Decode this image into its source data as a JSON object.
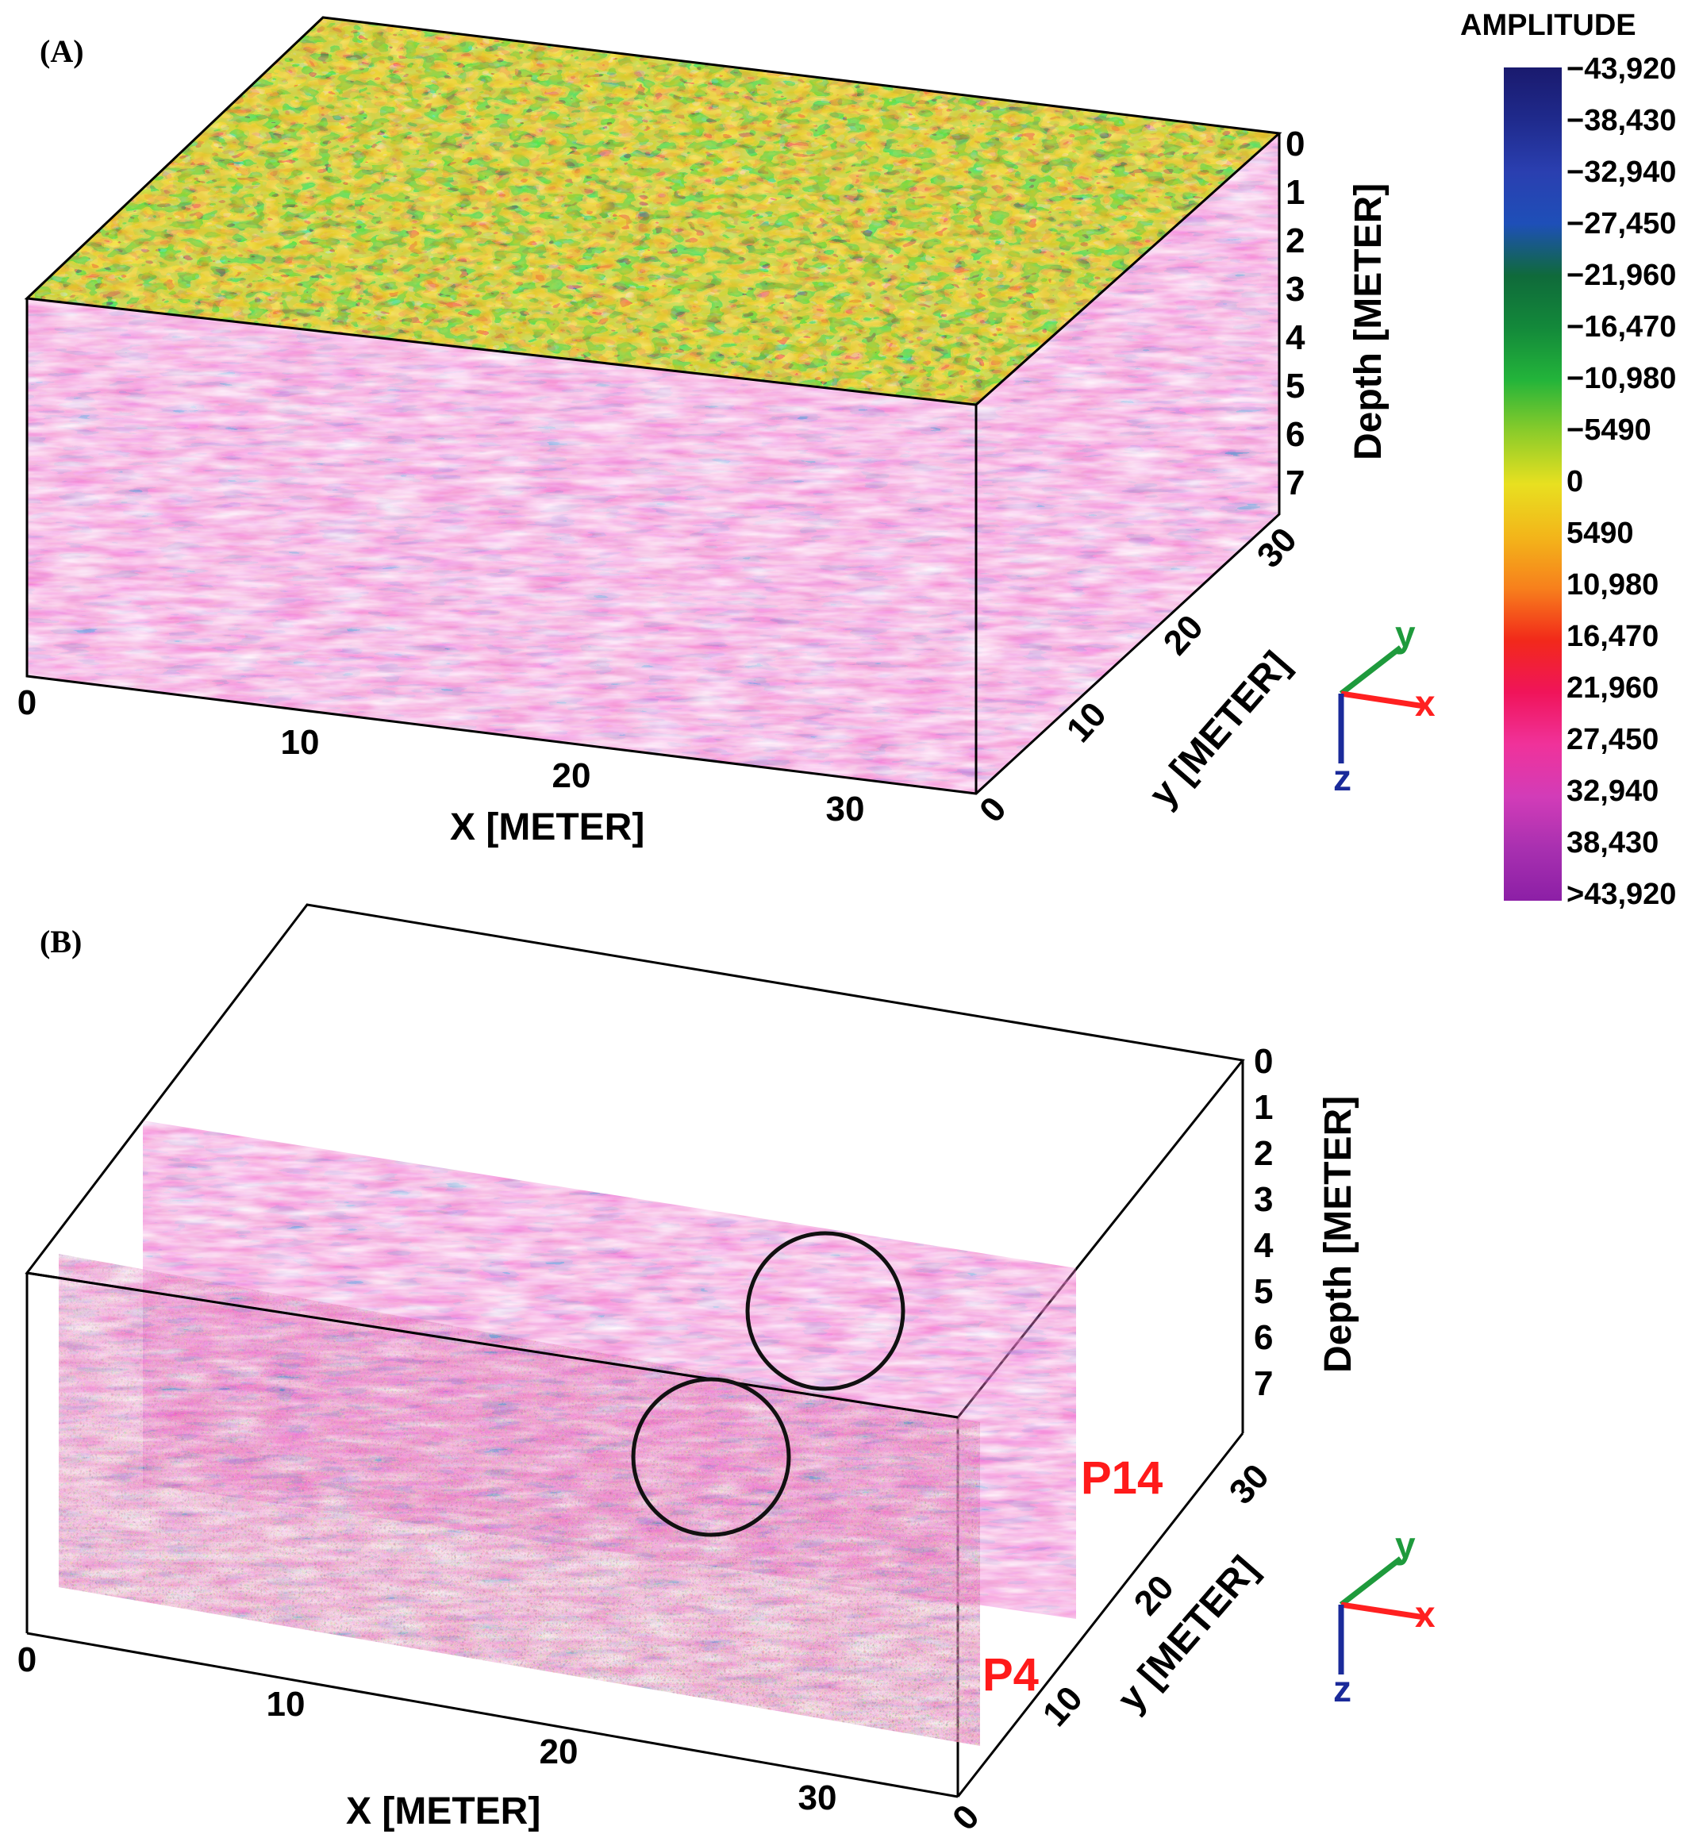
{
  "panel_labels": {
    "a": "(A)",
    "b": "(B)"
  },
  "axes": {
    "x_title": "X [METER]",
    "y_title": "y [METER]",
    "depth_title": "Depth [METER]",
    "x_ticks": [
      "0",
      "10",
      "20",
      "30"
    ],
    "y_ticks": [
      "0",
      "10",
      "20",
      "30"
    ],
    "depth_ticks": [
      "0",
      "1",
      "2",
      "3",
      "4",
      "5",
      "6",
      "7"
    ]
  },
  "colorbar": {
    "title": "AMPLITUDE",
    "labels": [
      "−43,920",
      "−38,430",
      "−32,940",
      "−27,450",
      "−21,960",
      "−16,470",
      "−10,980",
      "−5490",
      "0",
      "5490",
      "10,980",
      "16,470",
      "21,960",
      "27,450",
      "32,940",
      "38,430",
      ">43,920"
    ],
    "stops": [
      "#1a1a6e",
      "#1f2a8c",
      "#2a3fb0",
      "#1e4fb8",
      "#0f6a3a",
      "#13893a",
      "#23b43a",
      "#8ccc2a",
      "#e8e020",
      "#f3b61a",
      "#f7801c",
      "#f2291a",
      "#f0145a",
      "#f0329a",
      "#d23cb8",
      "#a830b0",
      "#8c1fa6"
    ]
  },
  "triad": {
    "x": "x",
    "y": "y",
    "z": "z",
    "colors": {
      "x": "#ff2020",
      "y": "#1e9a3c",
      "z": "#1a2a9a"
    }
  },
  "profiles": {
    "front": "P4",
    "back": "P14"
  },
  "chart_data": [
    {
      "type": "heatmap",
      "panel": "(A)",
      "view": "3D GPR amplitude volume",
      "x_range": [
        0,
        35
      ],
      "y_range": [
        0,
        30
      ],
      "z_range": [
        0,
        7
      ],
      "colorbar_range": [
        -43920,
        43920
      ],
      "xlabel": "X [METER]",
      "ylabel": "y [METER]",
      "zlabel": "Depth [METER]"
    },
    {
      "type": "heatmap",
      "panel": "(B)",
      "view": "GPR profile slices",
      "profiles": [
        "P4",
        "P14"
      ],
      "x_range": [
        0,
        35
      ],
      "y_range": [
        0,
        30
      ],
      "z_range": [
        0,
        7
      ],
      "xlabel": "X [METER]",
      "ylabel": "y [METER]",
      "zlabel": "Depth [METER]"
    }
  ]
}
